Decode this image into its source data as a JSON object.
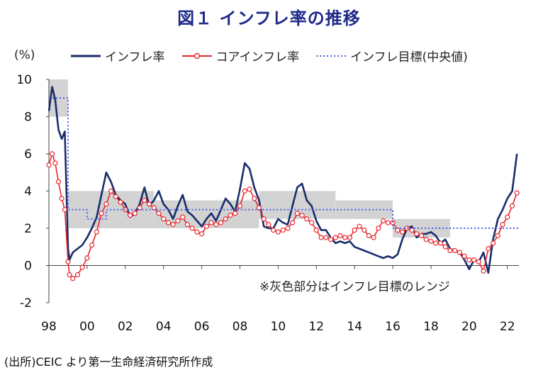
{
  "header": {
    "title": "図１ インフレ率の推移"
  },
  "axis": {
    "unit_label": "(%)"
  },
  "legend": {
    "items": [
      {
        "label": "インフレ率",
        "color": "#1a2d6b",
        "style": "solid"
      },
      {
        "label": "コアインフレ率",
        "color": "#e8242b",
        "style": "solid-marker"
      },
      {
        "label": "インフレ目標(中央値)",
        "color": "#4a5ce8",
        "style": "dotted"
      }
    ]
  },
  "source": "(出所)CEIC より第一生命経済研究所作成",
  "chart_data": {
    "type": "line",
    "title": "図１ インフレ率の推移",
    "ylabel": "(%)",
    "xlabel": "",
    "ylim": [
      -2,
      10
    ],
    "xlim": [
      1998,
      2022.6
    ],
    "yticks": [
      -2,
      0,
      2,
      4,
      6,
      8,
      10
    ],
    "xticks": [
      1998,
      2000,
      2002,
      2004,
      2006,
      2008,
      2010,
      2012,
      2014,
      2016,
      2018,
      2020,
      2022
    ],
    "xtick_labels": [
      "98",
      "00",
      "02",
      "04",
      "06",
      "08",
      "10",
      "12",
      "14",
      "16",
      "18",
      "20",
      "22"
    ],
    "grid": false,
    "legend_position": "top",
    "annotation": "※灰色部分はインフレ目標のレンジ",
    "target_range": [
      {
        "start": 1998.0,
        "end": 1999.0,
        "low": 8,
        "high": 10
      },
      {
        "start": 1999.0,
        "end": 2000.0,
        "low": 2,
        "high": 4
      },
      {
        "start": 2000.0,
        "end": 2001.0,
        "low": 2,
        "high": 4
      },
      {
        "start": 2001.0,
        "end": 2003.5,
        "low": 2,
        "high": 4
      },
      {
        "start": 2003.5,
        "end": 2009.0,
        "low": 2,
        "high": 3.5
      },
      {
        "start": 2009.0,
        "end": 2013.0,
        "low": 2.5,
        "high": 4
      },
      {
        "start": 2013.0,
        "end": 2016.0,
        "low": 2.5,
        "high": 3.5
      },
      {
        "start": 2016.0,
        "end": 2019.0,
        "low": 1.5,
        "high": 2.5
      }
    ],
    "series": [
      {
        "name": "インフレ率",
        "color": "#1a2d6b",
        "x": [
          1998.0,
          1998.17,
          1998.33,
          1998.5,
          1998.67,
          1998.83,
          1999.0,
          1999.08,
          1999.25,
          1999.5,
          1999.75,
          2000.0,
          2000.25,
          2000.5,
          2000.75,
          2001.0,
          2001.25,
          2001.5,
          2001.75,
          2002.0,
          2002.25,
          2002.5,
          2002.75,
          2003.0,
          2003.25,
          2003.5,
          2003.75,
          2004.0,
          2004.25,
          2004.5,
          2004.75,
          2005.0,
          2005.25,
          2005.5,
          2005.75,
          2006.0,
          2006.25,
          2006.5,
          2006.75,
          2007.0,
          2007.25,
          2007.5,
          2007.75,
          2008.0,
          2008.25,
          2008.5,
          2008.75,
          2009.0,
          2009.25,
          2009.5,
          2009.75,
          2010.0,
          2010.25,
          2010.5,
          2010.75,
          2011.0,
          2011.25,
          2011.5,
          2011.75,
          2012.0,
          2012.25,
          2012.5,
          2012.75,
          2013.0,
          2013.25,
          2013.5,
          2013.75,
          2014.0,
          2014.25,
          2014.5,
          2014.75,
          2015.0,
          2015.25,
          2015.5,
          2015.75,
          2016.0,
          2016.25,
          2016.5,
          2016.75,
          2017.0,
          2017.25,
          2017.5,
          2017.75,
          2018.0,
          2018.25,
          2018.5,
          2018.75,
          2019.0,
          2019.25,
          2019.5,
          2019.75,
          2020.0,
          2020.25,
          2020.5,
          2020.75,
          2021.0,
          2021.25,
          2021.5,
          2021.75,
          2022.0,
          2022.25,
          2022.5
        ],
        "y": [
          8.3,
          9.6,
          8.9,
          7.3,
          6.8,
          7.2,
          0.9,
          0.3,
          0.7,
          0.9,
          1.1,
          1.5,
          2.0,
          2.6,
          3.8,
          5.0,
          4.5,
          3.8,
          3.5,
          3.3,
          2.6,
          2.8,
          3.3,
          4.2,
          3.2,
          3.5,
          4.0,
          3.3,
          3.0,
          2.5,
          3.2,
          3.8,
          2.9,
          2.7,
          2.4,
          2.1,
          2.5,
          2.8,
          2.4,
          3.0,
          3.6,
          3.3,
          2.9,
          4.1,
          5.5,
          5.2,
          4.2,
          3.5,
          2.1,
          2.0,
          2.0,
          2.5,
          2.3,
          2.2,
          3.2,
          4.2,
          4.4,
          3.5,
          3.2,
          2.4,
          1.9,
          1.9,
          1.5,
          1.2,
          1.3,
          1.2,
          1.3,
          1.0,
          0.9,
          0.8,
          0.7,
          0.6,
          0.5,
          0.4,
          0.5,
          0.4,
          0.6,
          1.4,
          2.0,
          2.1,
          1.5,
          1.7,
          1.7,
          1.8,
          1.6,
          1.2,
          1.4,
          0.9,
          0.8,
          0.7,
          0.3,
          -0.2,
          0.3,
          0.2,
          0.7,
          -0.4,
          1.4,
          2.5,
          3.0,
          3.6,
          4.0,
          6.0
        ]
      },
      {
        "name": "コアインフレ率",
        "color": "#e8242b",
        "x": [
          1998.0,
          1998.17,
          1998.33,
          1998.5,
          1998.67,
          1998.83,
          1999.0,
          1999.08,
          1999.25,
          1999.5,
          1999.75,
          2000.0,
          2000.25,
          2000.5,
          2000.75,
          2001.0,
          2001.25,
          2001.5,
          2001.75,
          2002.0,
          2002.25,
          2002.5,
          2002.75,
          2003.0,
          2003.25,
          2003.5,
          2003.75,
          2004.0,
          2004.25,
          2004.5,
          2004.75,
          2005.0,
          2005.25,
          2005.5,
          2005.75,
          2006.0,
          2006.25,
          2006.5,
          2006.75,
          2007.0,
          2007.25,
          2007.5,
          2007.75,
          2008.0,
          2008.25,
          2008.5,
          2008.75,
          2009.0,
          2009.25,
          2009.5,
          2009.75,
          2010.0,
          2010.25,
          2010.5,
          2010.75,
          2011.0,
          2011.25,
          2011.5,
          2011.75,
          2012.0,
          2012.25,
          2012.5,
          2012.75,
          2013.0,
          2013.25,
          2013.5,
          2013.75,
          2014.0,
          2014.25,
          2014.5,
          2014.75,
          2015.0,
          2015.25,
          2015.5,
          2015.75,
          2016.0,
          2016.25,
          2016.5,
          2016.75,
          2017.0,
          2017.25,
          2017.5,
          2017.75,
          2018.0,
          2018.25,
          2018.5,
          2018.75,
          2019.0,
          2019.25,
          2019.5,
          2019.75,
          2020.0,
          2020.25,
          2020.5,
          2020.75,
          2021.0,
          2021.25,
          2021.5,
          2021.75,
          2022.0,
          2022.25,
          2022.5
        ],
        "y": [
          5.4,
          6.0,
          5.5,
          4.5,
          3.6,
          3.0,
          0.2,
          -0.5,
          -0.7,
          -0.5,
          -0.1,
          0.4,
          1.1,
          1.8,
          2.8,
          3.3,
          4.0,
          3.7,
          3.4,
          3.0,
          2.7,
          2.8,
          3.1,
          3.5,
          3.3,
          3.1,
          2.8,
          2.5,
          2.3,
          2.2,
          2.4,
          2.6,
          2.2,
          2.0,
          1.8,
          1.7,
          2.1,
          2.3,
          2.2,
          2.3,
          2.5,
          2.7,
          2.8,
          3.2,
          4.0,
          4.1,
          3.6,
          3.1,
          2.5,
          2.2,
          1.9,
          1.8,
          1.9,
          2.0,
          2.3,
          2.8,
          2.7,
          2.5,
          2.3,
          1.9,
          1.5,
          1.5,
          1.4,
          1.5,
          1.6,
          1.5,
          1.5,
          1.9,
          2.1,
          1.9,
          1.6,
          1.5,
          2.0,
          2.4,
          2.3,
          2.3,
          1.9,
          1.8,
          2.0,
          1.9,
          1.7,
          1.6,
          1.4,
          1.3,
          1.2,
          1.2,
          1.0,
          0.8,
          0.8,
          0.7,
          0.5,
          0.3,
          0.3,
          0.2,
          -0.3,
          0.9,
          1.2,
          1.6,
          2.2,
          2.6,
          3.2,
          3.9
        ]
      },
      {
        "name": "インフレ目標(中央値)",
        "color": "#4a5ce8",
        "style": "dotted",
        "x": [
          1998.0,
          1999.0,
          1999.0,
          2000.0,
          2000.0,
          2001.0,
          2001.0,
          2016.0,
          2016.0,
          2022.6
        ],
        "y": [
          9,
          9,
          3,
          3,
          2.5,
          2.5,
          3,
          3,
          2,
          2
        ]
      }
    ]
  }
}
